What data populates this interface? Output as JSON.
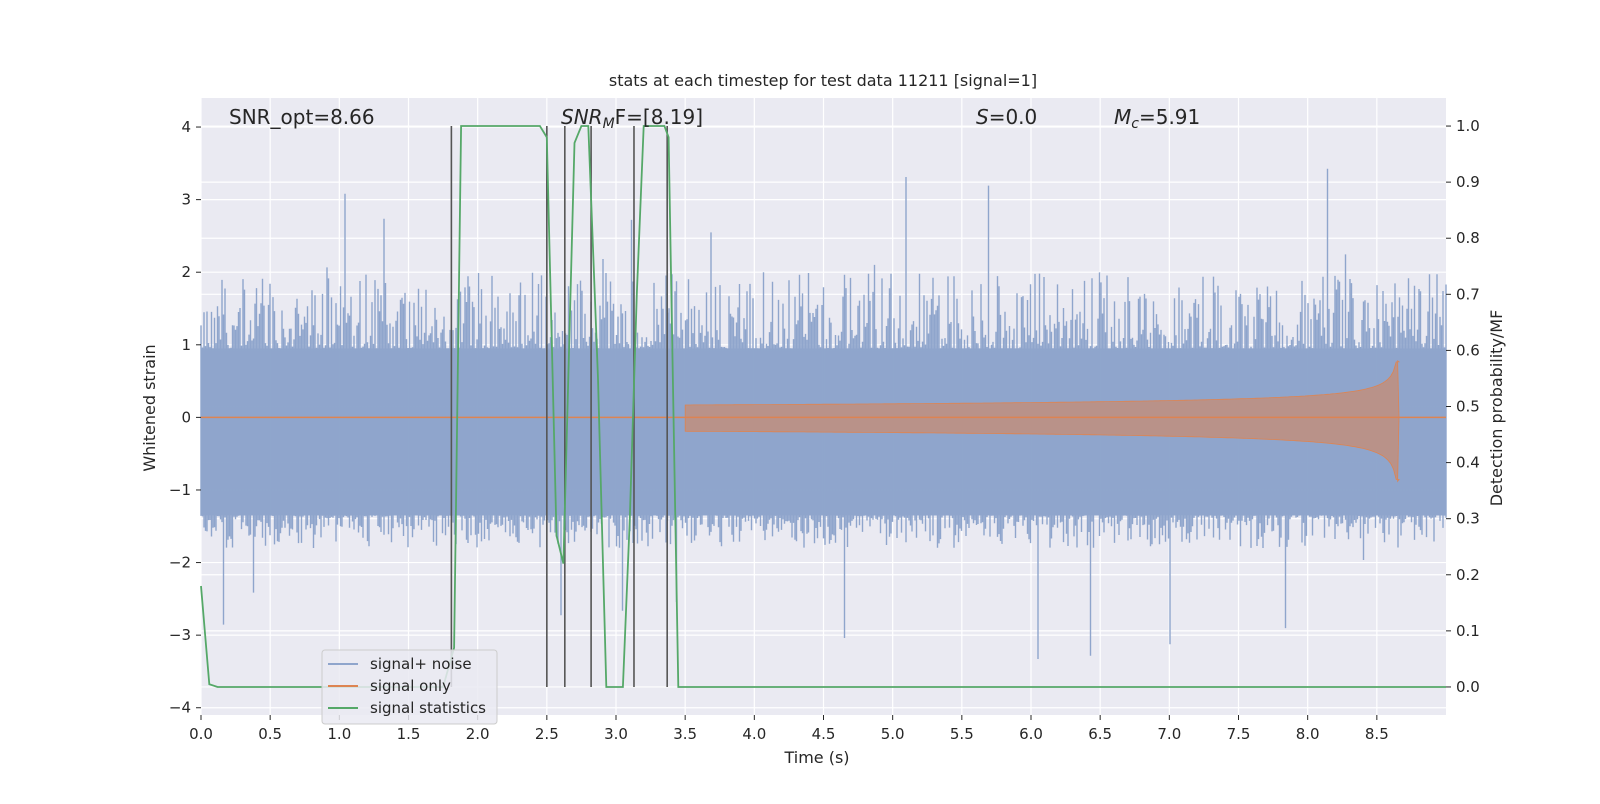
{
  "chart_data": {
    "type": "line",
    "title": "stats at each timestep for test data 11211 [signal=1]",
    "xlabel": "Time (s)",
    "ylabel_left": "Whitened strain",
    "ylabel_right": "Detection probability/MF",
    "xlim": [
      0,
      9.0
    ],
    "ylim_left": [
      -4.1,
      4.4
    ],
    "ylim_right": [
      -0.05,
      1.05
    ],
    "x_ticks": [
      "0.0",
      "0.5",
      "1.0",
      "1.5",
      "2.0",
      "2.5",
      "3.0",
      "3.5",
      "4.0",
      "4.5",
      "5.0",
      "5.5",
      "6.0",
      "6.5",
      "7.0",
      "7.5",
      "8.0",
      "8.5"
    ],
    "y_ticks_left": [
      "4",
      "3",
      "2",
      "1",
      "0",
      "−1",
      "−2",
      "−3",
      "−4"
    ],
    "y_ticks_right": [
      "1.0",
      "0.9",
      "0.8",
      "0.7",
      "0.6",
      "0.5",
      "0.4",
      "0.3",
      "0.2",
      "0.1",
      "0.0"
    ],
    "grid": true,
    "legend_placement": "lower-left",
    "annotations": {
      "snr_opt": "SNR_opt=8.66",
      "snr_mf_base": "SNR",
      "snr_mf_sub": "M",
      "snr_mf_tail": "F=[8.19]",
      "s_symbol": "S",
      "s_value": "=0.0",
      "mc_symbol": "M",
      "mc_sub": "c",
      "mc_value": "=5.91"
    },
    "series": [
      {
        "name": "signal+ noise",
        "color": "#8fa5cc",
        "axis": "left",
        "envelope": {
          "core_upper": 0.95,
          "core_lower": -1.35,
          "typical_peak_upper": 2.0,
          "typical_peak_lower": -1.8,
          "extreme_upper": 3.8,
          "extreme_lower": -3.6
        }
      },
      {
        "name": "signal only",
        "color": "#dd8452",
        "axis": "left",
        "chirp_start": 3.5,
        "merger_time": 8.66,
        "peak_amplitude_upper": 0.78,
        "peak_amplitude_lower": -0.88
      },
      {
        "name": "signal statistics",
        "color": "#55a868",
        "axis": "right",
        "points": [
          [
            0.0,
            0.18
          ],
          [
            0.06,
            0.005
          ],
          [
            0.12,
            0.0
          ],
          [
            1.75,
            0.0
          ],
          [
            1.83,
            0.07
          ],
          [
            1.88,
            1.0
          ],
          [
            2.45,
            1.0
          ],
          [
            2.5,
            0.98
          ],
          [
            2.57,
            0.27
          ],
          [
            2.62,
            0.22
          ],
          [
            2.7,
            0.97
          ],
          [
            2.75,
            1.0
          ],
          [
            2.8,
            1.0
          ],
          [
            2.87,
            0.55
          ],
          [
            2.93,
            0.0
          ],
          [
            3.05,
            0.0
          ],
          [
            3.1,
            0.3
          ],
          [
            3.15,
            0.7
          ],
          [
            3.2,
            1.0
          ],
          [
            3.35,
            1.0
          ],
          [
            3.38,
            0.98
          ],
          [
            3.45,
            0.0
          ],
          [
            9.0,
            0.0
          ]
        ]
      }
    ],
    "vertical_lines": [
      1.81,
      2.5,
      2.63,
      2.82,
      3.13,
      3.37
    ],
    "vertical_line_color": "#555555",
    "background": "#eaeaf2",
    "grid_color": "#ffffff"
  }
}
